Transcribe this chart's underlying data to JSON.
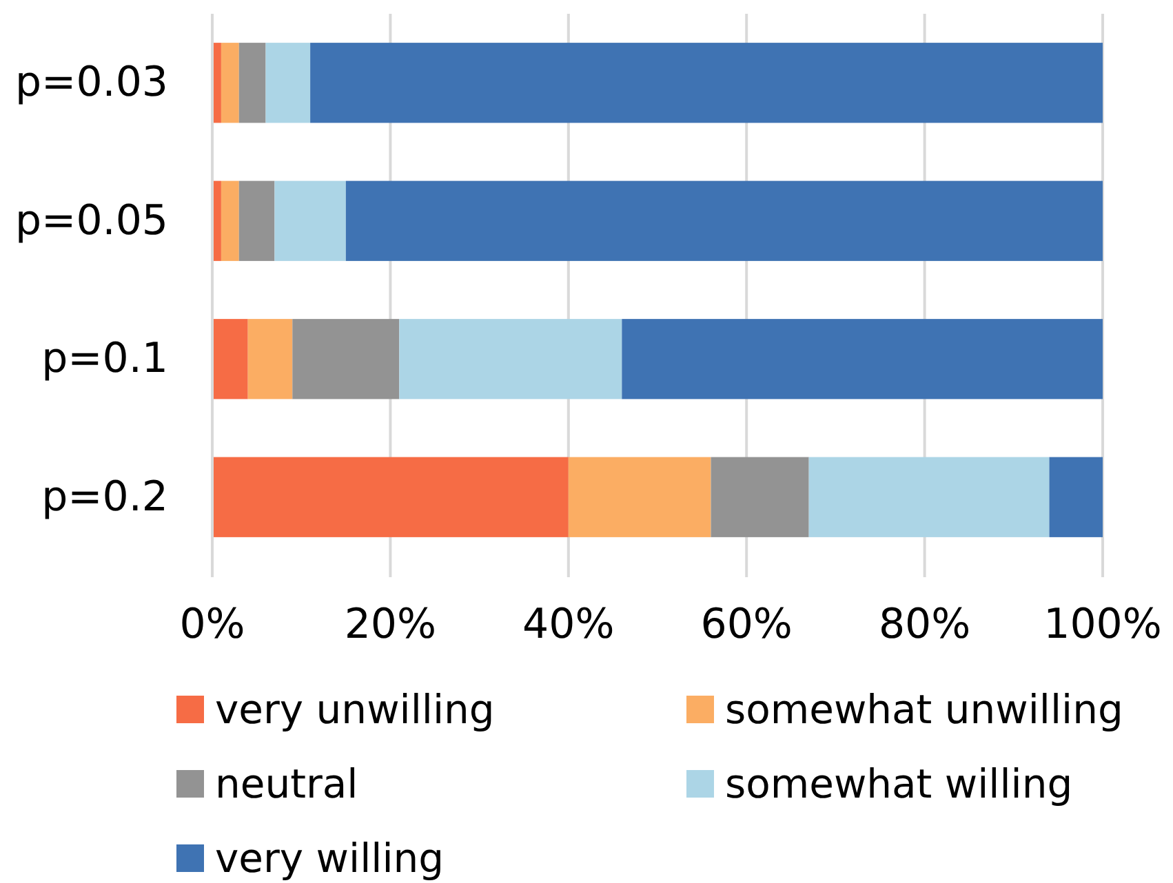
{
  "chart_data": {
    "type": "bar",
    "orientation": "horizontal",
    "stacked": true,
    "categories": [
      "p=0.03",
      "p=0.05",
      "p=0.1",
      "p=0.2"
    ],
    "series": [
      {
        "name": "very unwilling",
        "color": "#f66c45",
        "values": [
          1,
          1,
          4,
          40
        ]
      },
      {
        "name": "somewhat unwilling",
        "color": "#fbad63",
        "values": [
          2,
          2,
          5,
          16
        ]
      },
      {
        "name": "neutral",
        "color": "#939393",
        "values": [
          3,
          4,
          12,
          11
        ]
      },
      {
        "name": "somewhat willing",
        "color": "#acd5e6",
        "values": [
          5,
          8,
          25,
          27
        ]
      },
      {
        "name": "very willing",
        "color": "#3f73b3",
        "values": [
          89,
          85,
          54,
          6
        ]
      }
    ],
    "xlim": [
      0,
      100
    ],
    "xticks": [
      {
        "value": 0,
        "label": "0%"
      },
      {
        "value": 20,
        "label": "20%"
      },
      {
        "value": 40,
        "label": "40%"
      },
      {
        "value": 60,
        "label": "60%"
      },
      {
        "value": 80,
        "label": "80%"
      },
      {
        "value": 100,
        "label": "100%"
      }
    ],
    "grid": "x",
    "legend": "bottom"
  }
}
